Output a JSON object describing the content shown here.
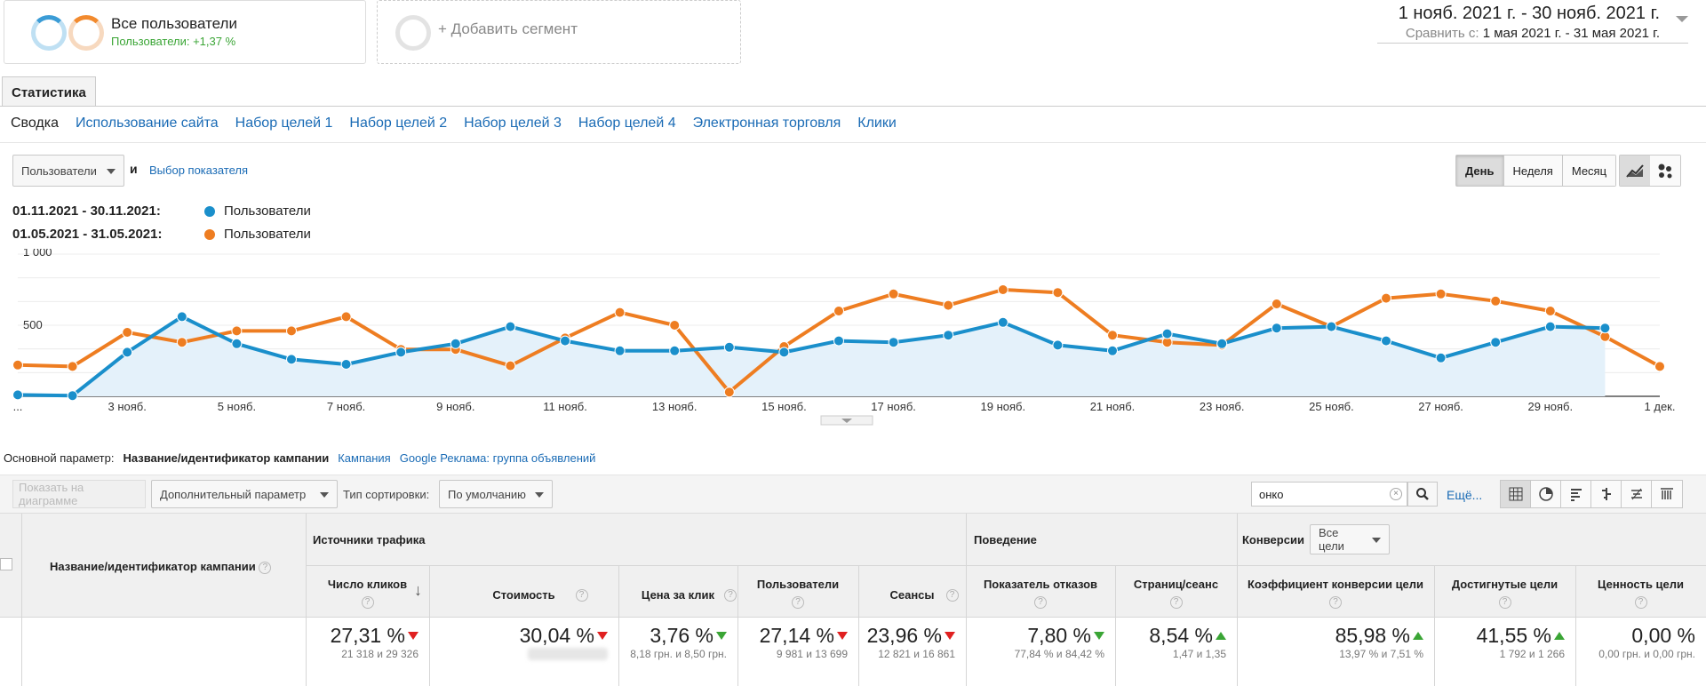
{
  "segments": {
    "all_users_title": "Все пользователи",
    "all_users_sub": "Пользователи: +1,37 %",
    "add_segment": "+ Добавить сегмент"
  },
  "date_range": {
    "main": "1 нояб. 2021 г. - 30 нояб. 2021 г.",
    "compare_label": "Сравнить с:",
    "compare_value": "1 мая 2021 г. - 31 мая 2021 г."
  },
  "tabs": {
    "stats": "Статистика",
    "subnav": [
      "Сводка",
      "Использование сайта",
      "Набор целей 1",
      "Набор целей 2",
      "Набор целей 3",
      "Набор целей 4",
      "Электронная торговля",
      "Клики"
    ]
  },
  "controls": {
    "metric": "Пользователи",
    "and": "и",
    "choose_metric": "Выбор показателя",
    "periods": [
      "День",
      "Неделя",
      "Месяц"
    ],
    "active_period": "День"
  },
  "legend": [
    {
      "date": "01.11.2021 - 30.11.2021:",
      "label": "Пользователи",
      "color": "#1a8fcb"
    },
    {
      "date": "01.05.2021 - 31.05.2021:",
      "label": "Пользователи",
      "color": "#ee7d21"
    }
  ],
  "chart_data": {
    "type": "line",
    "y_ticks": [
      "1 000",
      "500"
    ],
    "x_tick_labels": [
      "...",
      "3 нояб.",
      "5 нояб.",
      "7 нояб.",
      "9 нояб.",
      "11 нояб.",
      "13 нояб.",
      "15 нояб.",
      "17 нояб.",
      "19 нояб.",
      "21 нояб.",
      "23 нояб.",
      "25 нояб.",
      "27 нояб.",
      "29 нояб.",
      "1 дек."
    ],
    "ylim": [
      0,
      1000
    ],
    "grid": true,
    "series": [
      {
        "name": "Пользователи",
        "period": "01.11.2021 - 30.11.2021",
        "color": "#1a8fcb",
        "fill": true,
        "values": [
          10,
          5,
          310,
          560,
          370,
          260,
          225,
          310,
          370,
          490,
          390,
          320,
          320,
          345,
          310,
          390,
          380,
          430,
          520,
          360,
          320,
          440,
          370,
          480,
          490,
          390,
          270,
          380,
          490,
          480
        ]
      },
      {
        "name": "Пользователи",
        "period": "01.05.2021 - 31.05.2021",
        "color": "#ee7d21",
        "fill": false,
        "values": [
          220,
          210,
          450,
          380,
          460,
          460,
          560,
          330,
          330,
          215,
          410,
          590,
          500,
          30,
          350,
          600,
          720,
          640,
          750,
          730,
          430,
          380,
          360,
          650,
          490,
          690,
          720,
          670,
          600,
          420,
          210
        ]
      }
    ]
  },
  "table_controls": {
    "primary_label": "Основной параметр:",
    "primary_active": "Название/идентификатор кампании",
    "primary_options": [
      "Кампания",
      "Google Реклама: группа объявлений"
    ],
    "show_on_chart": "Показать на диаграмме",
    "secondary_dim": "Дополнительный параметр",
    "sort_label": "Тип сортировки:",
    "sort_value": "По умолчанию",
    "search_value": "онко",
    "more": "Ещё..."
  },
  "table": {
    "campaign_header": "Название/идентификатор кампании",
    "groups": {
      "traffic": "Источники трафика",
      "behavior": "Поведение",
      "conversions": "Конверсии",
      "goal_select": "Все цели"
    },
    "columns": [
      {
        "name": "Число кликов",
        "pct": "27,31 %",
        "dir": "down",
        "sub": "21 318 и 29 326"
      },
      {
        "name": "Стоимость",
        "pct": "30,04 %",
        "dir": "down",
        "sub": ""
      },
      {
        "name": "Цена за клик",
        "pct": "3,76 %",
        "dir": "down-green",
        "sub": "8,18 грн. и 8,50 грн."
      },
      {
        "name": "Пользователи",
        "pct": "27,14 %",
        "dir": "down",
        "sub": "9 981 и 13 699"
      },
      {
        "name": "Сеансы",
        "pct": "23,96 %",
        "dir": "down",
        "sub": "12 821 и 16 861"
      },
      {
        "name": "Показатель отказов",
        "pct": "7,80 %",
        "dir": "down-green",
        "sub": "77,84 % и 84,42 %"
      },
      {
        "name": "Страниц/сеанс",
        "pct": "8,54 %",
        "dir": "up",
        "sub": "1,47 и 1,35"
      },
      {
        "name": "Коэффициент конверсии цели",
        "pct": "85,98 %",
        "dir": "up",
        "sub": "13,97 % и 7,51 %"
      },
      {
        "name": "Достигнутые цели",
        "pct": "41,55 %",
        "dir": "up",
        "sub": "1 792 и 1 266"
      },
      {
        "name": "Ценность цели",
        "pct": "0,00 %",
        "dir": "none",
        "sub": "0,00 грн. и 0,00 грн."
      }
    ]
  }
}
